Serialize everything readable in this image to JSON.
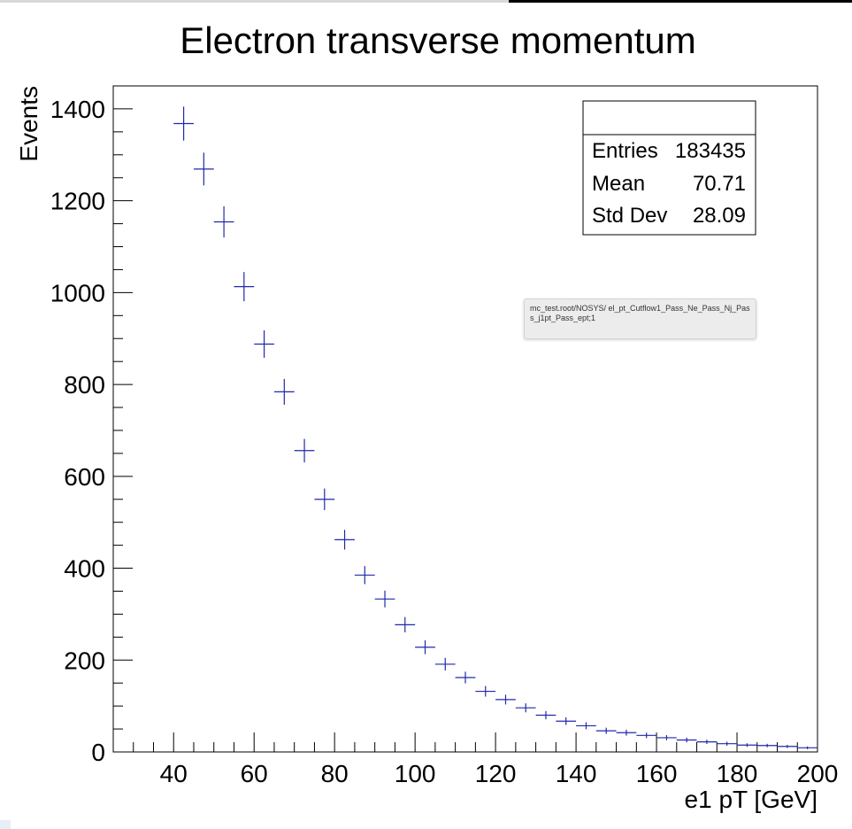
{
  "tooltip": {
    "text": "mc_test.root/NOSYS/ el_pt_Cutflow1_Pass_Ne_Pass_Nj_Pass_j1pt_Pass_ept;1"
  },
  "stats_box": {
    "title": "",
    "rows": [
      {
        "label": "Entries",
        "value": "183435"
      },
      {
        "label": "Mean",
        "value": "70.71"
      },
      {
        "label": "Std Dev",
        "value": "28.09"
      }
    ]
  },
  "chart_data": {
    "type": "scatter",
    "title": "Electron transverse momentum",
    "xlabel": "e1 pT [GeV]",
    "ylabel": "Events",
    "xlim": [
      25,
      200
    ],
    "ylim": [
      0,
      1450
    ],
    "bin_width": 5,
    "x_ticks": [
      40,
      60,
      80,
      100,
      120,
      140,
      160,
      180,
      200
    ],
    "y_ticks": [
      0,
      200,
      400,
      600,
      800,
      1000,
      1200,
      1400
    ],
    "x_tick_labels": [
      "40",
      "60",
      "80",
      "100",
      "120",
      "140",
      "160",
      "180",
      "200"
    ],
    "y_tick_labels": [
      "0",
      "200",
      "400",
      "600",
      "800",
      "1000",
      "1200",
      "1400"
    ],
    "grid": false,
    "marker_color": "#1f2aa8",
    "x": [
      42.5,
      47.5,
      52.5,
      57.5,
      62.5,
      67.5,
      72.5,
      77.5,
      82.5,
      87.5,
      92.5,
      97.5,
      102.5,
      107.5,
      112.5,
      117.5,
      122.5,
      127.5,
      132.5,
      137.5,
      142.5,
      147.5,
      152.5,
      157.5,
      162.5,
      167.5,
      172.5,
      177.5,
      182.5,
      187.5,
      192.5,
      197.5
    ],
    "y": [
      1368,
      1269,
      1154,
      1013,
      888,
      784,
      656,
      550,
      462,
      385,
      333,
      277,
      228,
      191,
      162,
      132,
      114,
      96,
      80,
      67,
      57,
      46,
      42,
      36,
      31,
      26,
      22,
      18,
      15,
      14,
      12,
      9
    ]
  }
}
